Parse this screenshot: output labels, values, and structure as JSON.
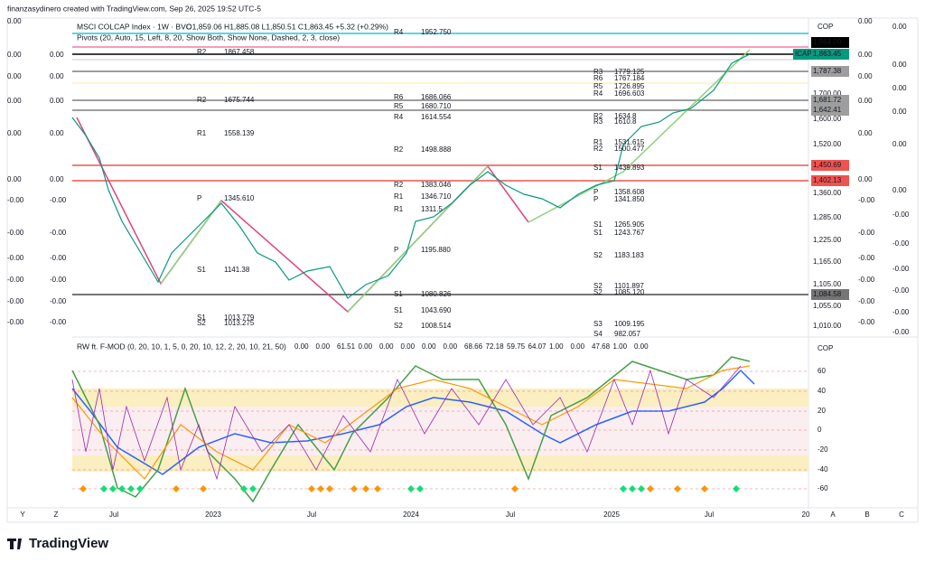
{
  "header": {
    "author": "finanzasydinero created with TradingView.com, Sep 26, 2025 19:52 UTC-5"
  },
  "legend": {
    "symbol": "MSCI COLCAP Index · 1W · BVC",
    "ohlc": "O1,859.06 H1,885.08 L1,850.51 C1,863.45 +5.32 (+0.29%)",
    "pivots": "Pivots (20, Auto, 15, Left, 8, 20, Show Both, Show None, Dashed, 2, 3, close)"
  },
  "price_axis": {
    "currency": "COP",
    "labels": [
      "1,864.00",
      "ICAP",
      "1,863.45",
      "1,787.38",
      "1,700.00",
      "1,681.72",
      "1,642.41",
      "1,600.00",
      "1,520.00",
      "1,450.69",
      "1,402.13",
      "1,360.00",
      "1,285.00",
      "1,225.00",
      "1,165.00",
      "1,105.00",
      "1,084.58",
      "1,055.00",
      "1,010.00"
    ]
  },
  "left_axis_outer": [
    "0.00",
    "0.00",
    "0.00",
    "0.00",
    "0.00",
    "0.00",
    "-0.00",
    "-0.00",
    "-0.00",
    "-0.00",
    "-0.00",
    "-0.00"
  ],
  "left_axis_inner": [
    "0.00",
    "0.00",
    "0.00",
    "0.00",
    "0.00",
    "-0.00",
    "-0.00",
    "-0.00",
    "-0.00",
    "-0.00",
    "-0.00"
  ],
  "right_axis_inner": [
    "0.00",
    "0.00",
    "0.00",
    "0.00",
    "0.00",
    "0.00",
    "-0.00",
    "-0.00",
    "-0.00",
    "-0.00",
    "-0.00",
    "-0.00"
  ],
  "right_axis_outer": [
    "0.00",
    "0.00",
    "0.00",
    "0.00",
    "0.00",
    "0.00",
    "-0.00",
    "-0.00",
    "-0.00",
    "-0.00",
    "-0.00",
    "-0.00"
  ],
  "pivots": [
    {
      "name": "R4",
      "value": "1952.750"
    },
    {
      "name": "R2",
      "value": "1867.458"
    },
    {
      "name": "R2",
      "value": "1675.744"
    },
    {
      "name": "R1",
      "value": "1558.139"
    },
    {
      "name": "R6",
      "value": "1686.066"
    },
    {
      "name": "R5",
      "value": "1680.710"
    },
    {
      "name": "R4",
      "value": "1614.554"
    },
    {
      "name": "R2",
      "value": "1498.888"
    },
    {
      "name": "R2",
      "value": "1383.046"
    },
    {
      "name": "R1",
      "value": "1346.710"
    },
    {
      "name": "R1",
      "value": "1311.5"
    },
    {
      "name": "P",
      "value": "1345.610"
    },
    {
      "name": "P",
      "value": "1195.880"
    },
    {
      "name": "S1",
      "value": "1141.38"
    },
    {
      "name": "S1",
      "value": "1080.826"
    },
    {
      "name": "S1",
      "value": "1043.690"
    },
    {
      "name": "S2",
      "value": "1008.514"
    },
    {
      "name": "S1",
      "value": "1013.779"
    },
    {
      "name": "S2",
      "value": "1013.275"
    },
    {
      "name": "R3",
      "value": "1779.125"
    },
    {
      "name": "R6",
      "value": "1767.184"
    },
    {
      "name": "R5",
      "value": "1726.895"
    },
    {
      "name": "R4",
      "value": "1696.603"
    },
    {
      "name": "R2",
      "value": "1634.8"
    },
    {
      "name": "R3",
      "value": "1610.8"
    },
    {
      "name": "R1",
      "value": "1531.615"
    },
    {
      "name": "R2",
      "value": "1500.477"
    },
    {
      "name": "S1",
      "value": "1439.893"
    },
    {
      "name": "P",
      "value": "1358.608"
    },
    {
      "name": "P",
      "value": "1341.850"
    },
    {
      "name": "S1",
      "value": "1265.905"
    },
    {
      "name": "S1",
      "value": "1243.767"
    },
    {
      "name": "S2",
      "value": "1183.183"
    },
    {
      "name": "S2",
      "value": "1101.897"
    },
    {
      "name": "S2",
      "value": "1085.120"
    },
    {
      "name": "S3",
      "value": "1009.195"
    },
    {
      "name": "S4",
      "value": "982.057"
    }
  ],
  "indicator": {
    "title": "RW ft. F-MOD (0, 20, 10, 1, 5, 0, 20, 10, 12, 2, 20, 10, 21, 50)",
    "values": [
      "0.00",
      "0.00",
      "61.51",
      "0.00",
      "0.00",
      "0.00",
      "0.00",
      "0.00",
      "68.66",
      "72.18",
      "59.75",
      "64.07",
      "1.00",
      "0.00",
      "47.68",
      "1.00",
      "0.00"
    ],
    "currency": "COP",
    "axis": [
      "60",
      "40",
      "20",
      "0",
      "-20",
      "-40",
      "-60"
    ]
  },
  "time_axis": [
    "Y",
    "Z",
    "Jul",
    "2023",
    "Jul",
    "2024",
    "Jul",
    "2025",
    "Jul",
    "20",
    "A",
    "B",
    "C"
  ],
  "footer": {
    "brand": "TradingView"
  }
}
